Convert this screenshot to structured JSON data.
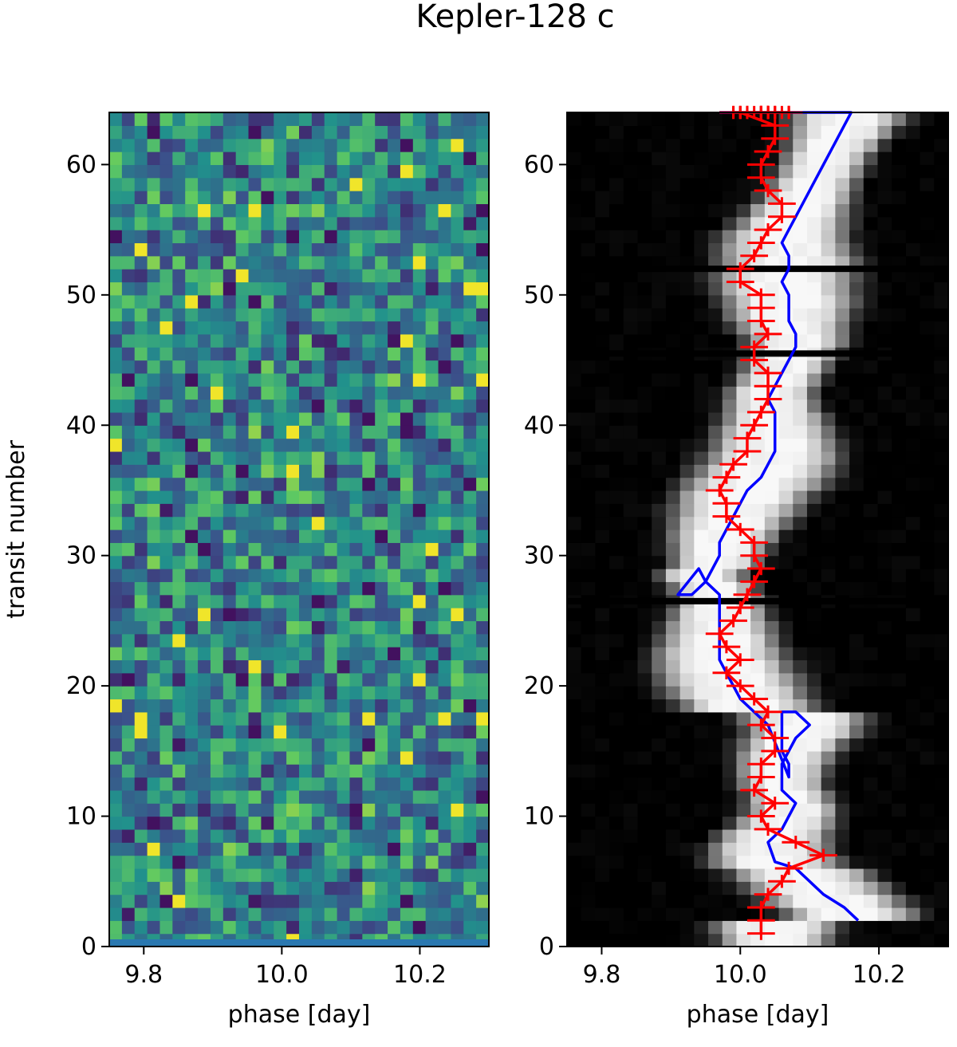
{
  "chart_data": {
    "title": "Kepler-128 c",
    "panels": [
      {
        "type": "heatmap",
        "xlabel": "phase [day]",
        "ylabel": "transit number",
        "xlim": [
          9.75,
          10.3
        ],
        "ylim": [
          0,
          64
        ],
        "xticks": [
          "9.8",
          "10.0",
          "10.2"
        ],
        "yticks": [
          "0",
          "10",
          "20",
          "30",
          "40",
          "50",
          "60"
        ],
        "colormap": "viridis",
        "grid": false
      },
      {
        "type": "heatmap",
        "xlabel": "phase [day]",
        "ylabel": "",
        "xlim": [
          9.75,
          10.3
        ],
        "ylim": [
          0,
          64
        ],
        "xticks": [
          "9.8",
          "10.0",
          "10.2"
        ],
        "yticks": [
          "0",
          "10",
          "20",
          "30",
          "40",
          "50",
          "60"
        ],
        "colormap": "grayscale",
        "grid": false,
        "series": [
          {
            "color": "#0000ff",
            "x": [
              10.17,
              10.15,
              10.12,
              10.1,
              10.08,
              10.05,
              10.04,
              10.06,
              10.08,
              10.06,
              10.06,
              10.06,
              10.07,
              10.08,
              10.1,
              10.08,
              10.06,
              10.06,
              10.06,
              10.06,
              10.07,
              10.07,
              10.04,
              10.02,
              10.0,
              9.99,
              9.98,
              9.97,
              9.97,
              9.97,
              9.97,
              9.97,
              9.97,
              9.95,
              9.94,
              9.91,
              9.93,
              9.95,
              9.96,
              9.97,
              9.97,
              9.98,
              9.99,
              10.0,
              10.01,
              10.03,
              10.04,
              10.05,
              10.05,
              10.05,
              10.05,
              10.04,
              10.05,
              10.06,
              10.07,
              10.08,
              10.08,
              10.07,
              10.07,
              10.07,
              10.06,
              10.07,
              10.07,
              10.06,
              10.07,
              10.08,
              10.09,
              10.1,
              10.11,
              10.12,
              10.13,
              10.14,
              10.15,
              10.16,
              10.14,
              10.12,
              10.1,
              10.11,
              10.11,
              10.12,
              10.12,
              10.12,
              10.1,
              10.09,
              10.07,
              10.06,
              10.05,
              10.04,
              10.04,
              10.03,
              10.02,
              10.01,
              10.0,
              10.0,
              9.99,
              9.98,
              9.97
            ],
            "y": [
              2,
              3,
              4,
              5,
              6,
              6.5,
              8,
              9,
              11,
              12,
              13,
              14,
              15,
              16,
              17,
              18,
              18,
              17,
              16,
              15,
              14,
              13,
              17,
              18,
              19,
              20,
              21,
              22,
              23,
              24,
              25,
              26,
              27,
              28,
              29,
              27,
              27,
              28,
              29,
              30,
              31,
              32,
              33,
              34,
              35,
              36,
              37,
              38,
              39,
              40,
              41,
              42,
              43,
              44,
              45,
              46,
              47,
              48,
              49,
              50,
              51,
              52,
              53,
              54,
              55,
              56,
              57,
              58,
              59,
              60,
              61,
              62,
              63,
              64,
              64,
              64,
              64,
              64,
              64,
              64,
              64,
              64,
              64,
              64,
              64,
              64,
              64,
              64,
              64,
              64,
              64,
              64,
              64,
              64,
              64,
              64,
              64
            ]
          },
          {
            "color": "#ff0000",
            "x": [
              10.03,
              10.03,
              10.03,
              10.04,
              10.06,
              10.07,
              10.12,
              10.08,
              10.04,
              10.03,
              10.05,
              10.02,
              10.03,
              10.03,
              10.05,
              10.05,
              10.03,
              10.04,
              10.02,
              10.0,
              9.98,
              10.0,
              9.98,
              9.97,
              9.99,
              10.0,
              10.01,
              10.02,
              10.03,
              10.02,
              10.02,
              10.0,
              9.98,
              9.98,
              9.97,
              9.98,
              9.99,
              10.01,
              10.01,
              10.02,
              10.03,
              10.04,
              10.04,
              10.04,
              10.02,
              10.02,
              10.04,
              10.03,
              10.03,
              10.03,
              10.0,
              10.0,
              10.02,
              10.03,
              10.04,
              10.06,
              10.06,
              10.04,
              10.03,
              10.03,
              10.04,
              10.05,
              10.05,
              10.0,
              10.03,
              10.04,
              10.05,
              10.05,
              10.07,
              10.07,
              10.04,
              10.0,
              10.01,
              10.03,
              10.04,
              10.04,
              10.05,
              10.06,
              10.07,
              10.04,
              10.03,
              10.03,
              10.04,
              10.03,
              10.03,
              10.04,
              10.04,
              10.04,
              10.04,
              10.02,
              10.01,
              10.01,
              10.04,
              10.0,
              9.99,
              9.99
            ],
            "y": [
              1,
              2,
              3,
              4,
              5,
              6,
              7,
              8,
              9,
              10,
              11,
              12,
              13,
              14,
              15,
              16,
              17,
              18,
              19,
              20,
              21,
              22,
              23,
              24,
              25,
              26,
              27,
              28,
              29,
              30,
              31,
              32,
              33,
              34,
              35,
              36,
              37,
              38,
              39,
              40,
              41,
              42,
              43,
              44,
              45,
              46,
              47,
              48,
              49,
              50,
              51,
              52,
              53,
              54,
              55,
              56,
              57,
              58,
              59,
              60,
              61,
              62,
              63,
              64,
              64,
              64,
              64,
              64,
              64,
              64,
              64,
              64,
              64,
              64,
              64,
              64,
              64,
              64,
              64,
              64,
              64,
              64,
              64,
              64,
              64,
              64,
              64,
              64,
              64,
              64,
              64,
              64,
              64,
              64,
              64,
              64
            ],
            "yerr": 0.5,
            "xerr": 0.02
          }
        ]
      }
    ]
  }
}
